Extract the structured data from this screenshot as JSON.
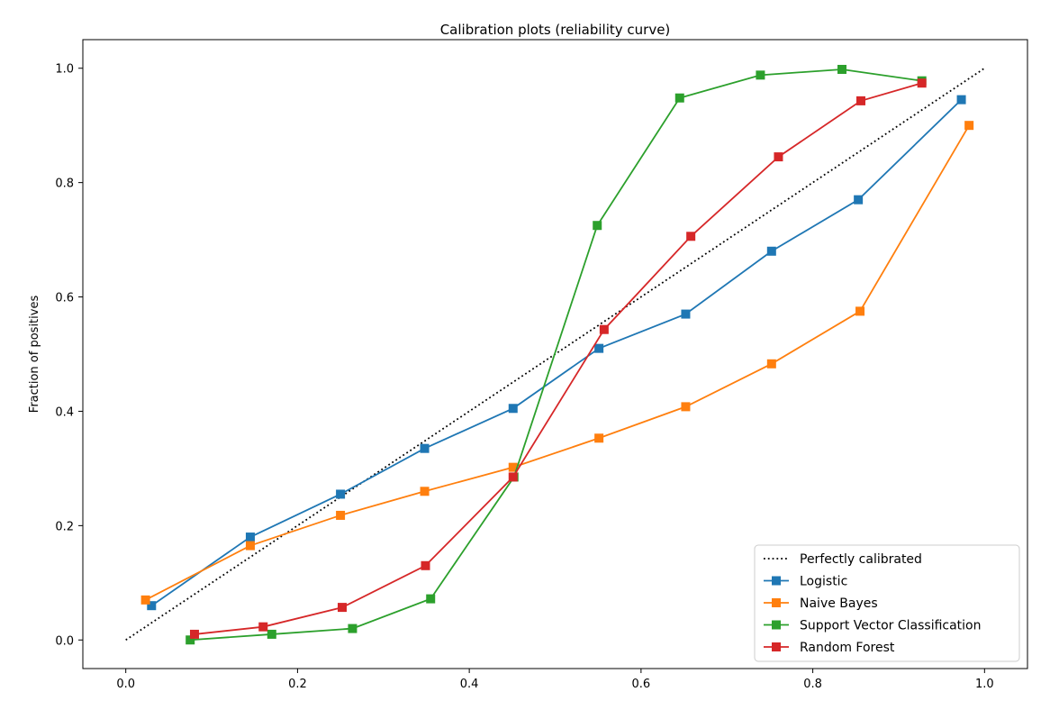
{
  "chart_data": {
    "type": "line",
    "title": "Calibration plots  (reliability curve)",
    "xlabel": "",
    "ylabel": "Fraction of positives",
    "xlim": [
      -0.05,
      1.05
    ],
    "ylim": [
      -0.05,
      1.05
    ],
    "xticks": [
      "0.0",
      "0.2",
      "0.4",
      "0.6",
      "0.8",
      "1.0"
    ],
    "yticks": [
      "0.0",
      "0.2",
      "0.4",
      "0.6",
      "0.8",
      "1.0"
    ],
    "grid": false,
    "legend_position": "bottom-right",
    "series": [
      {
        "name": "Perfectly calibrated",
        "color": "#000000",
        "style": "dotted",
        "marker": "none",
        "x": [
          0,
          1
        ],
        "y": [
          0,
          1
        ]
      },
      {
        "name": "Logistic",
        "color": "#1f77b4",
        "style": "solid",
        "marker": "square",
        "x": [
          0.03,
          0.145,
          0.25,
          0.348,
          0.451,
          0.551,
          0.652,
          0.752,
          0.853,
          0.973
        ],
        "y": [
          0.06,
          0.18,
          0.255,
          0.335,
          0.405,
          0.51,
          0.57,
          0.68,
          0.77,
          0.945
        ]
      },
      {
        "name": "Naive Bayes",
        "color": "#ff7f0e",
        "style": "solid",
        "marker": "square",
        "x": [
          0.023,
          0.145,
          0.25,
          0.348,
          0.451,
          0.551,
          0.652,
          0.752,
          0.855,
          0.982
        ],
        "y": [
          0.07,
          0.165,
          0.218,
          0.26,
          0.302,
          0.353,
          0.408,
          0.483,
          0.575,
          0.9
        ]
      },
      {
        "name": "Support Vector Classification",
        "color": "#2ca02c",
        "style": "solid",
        "marker": "square",
        "x": [
          0.075,
          0.17,
          0.264,
          0.355,
          0.452,
          0.549,
          0.645,
          0.739,
          0.834,
          0.927
        ],
        "y": [
          0.0,
          0.01,
          0.02,
          0.072,
          0.285,
          0.725,
          0.948,
          0.988,
          0.998,
          0.978
        ]
      },
      {
        "name": "Random Forest",
        "color": "#d62728",
        "style": "solid",
        "marker": "square",
        "x": [
          0.08,
          0.16,
          0.252,
          0.349,
          0.451,
          0.557,
          0.658,
          0.76,
          0.856,
          0.927
        ],
        "y": [
          0.01,
          0.023,
          0.057,
          0.13,
          0.285,
          0.543,
          0.706,
          0.845,
          0.943,
          0.974
        ]
      }
    ]
  }
}
